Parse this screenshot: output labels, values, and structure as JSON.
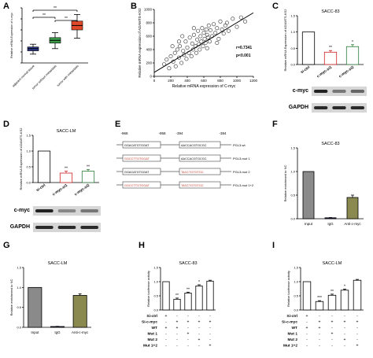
{
  "panel_labels": [
    "A",
    "B",
    "C",
    "D",
    "E",
    "F",
    "G",
    "H",
    "I"
  ],
  "chart_data": [
    {
      "id": "A",
      "type": "box",
      "ylabel": "Relative mRNA Expression of c-myc",
      "ylim": [
        0,
        10
      ],
      "categories": [
        "adjacent normal tissue",
        "tumor without metastasis",
        "tumor with metastasis"
      ],
      "boxes": [
        {
          "min": 1.6,
          "q1": 2.2,
          "median": 2.6,
          "q3": 2.9,
          "max": 3.4,
          "color": "#2e3a8c"
        },
        {
          "min": 2.6,
          "q1": 3.6,
          "median": 4.1,
          "q3": 4.6,
          "max": 5.5,
          "color": "#3a9a4a"
        },
        {
          "min": 4.5,
          "q1": 6.0,
          "median": 6.8,
          "q3": 7.6,
          "max": 8.8,
          "color": "#e04a2a"
        }
      ],
      "significance": [
        {
          "from": 0,
          "to": 2,
          "label": "**"
        },
        {
          "from": 0,
          "to": 1,
          "label": "**"
        },
        {
          "from": 1,
          "to": 2,
          "label": "**"
        }
      ]
    },
    {
      "id": "B",
      "type": "scatter",
      "xlabel": "Relative mRNA expression of C-myc",
      "ylabel": "Relative mRNA expression of ADAMTS-KS2",
      "xlim": [
        0,
        1200
      ],
      "ylim": [
        0,
        1000
      ],
      "xticks": [
        0,
        200,
        400,
        600,
        800,
        1000,
        1200
      ],
      "yticks": [
        0,
        200,
        400,
        600,
        800,
        1000
      ],
      "annotation": [
        "r=0.7341",
        "p<0.001"
      ],
      "fit": {
        "x": [
          0,
          1200
        ],
        "y": [
          60,
          950
        ]
      },
      "points": [
        [
          120,
          180
        ],
        [
          150,
          250
        ],
        [
          180,
          120
        ],
        [
          200,
          300
        ],
        [
          230,
          220
        ],
        [
          250,
          350
        ],
        [
          260,
          150
        ],
        [
          280,
          400
        ],
        [
          300,
          280
        ],
        [
          310,
          450
        ],
        [
          330,
          200
        ],
        [
          350,
          380
        ],
        [
          360,
          320
        ],
        [
          380,
          520
        ],
        [
          390,
          260
        ],
        [
          400,
          430
        ],
        [
          420,
          350
        ],
        [
          430,
          580
        ],
        [
          450,
          300
        ],
        [
          460,
          490
        ],
        [
          470,
          400
        ],
        [
          480,
          620
        ],
        [
          500,
          450
        ],
        [
          510,
          350
        ],
        [
          520,
          550
        ],
        [
          530,
          680
        ],
        [
          540,
          480
        ],
        [
          550,
          400
        ],
        [
          560,
          600
        ],
        [
          570,
          520
        ],
        [
          580,
          720
        ],
        [
          590,
          450
        ],
        [
          600,
          650
        ],
        [
          610,
          560
        ],
        [
          620,
          500
        ],
        [
          630,
          700
        ],
        [
          640,
          620
        ],
        [
          650,
          580
        ],
        [
          660,
          760
        ],
        [
          670,
          520
        ],
        [
          680,
          690
        ],
        [
          700,
          600
        ],
        [
          720,
          780
        ],
        [
          740,
          650
        ],
        [
          760,
          720
        ],
        [
          780,
          560
        ],
        [
          800,
          820
        ],
        [
          820,
          700
        ],
        [
          840,
          640
        ],
        [
          860,
          760
        ],
        [
          880,
          800
        ],
        [
          900,
          680
        ],
        [
          950,
          860
        ],
        [
          1000,
          740
        ],
        [
          1050,
          880
        ],
        [
          1100,
          820
        ],
        [
          220,
          450
        ],
        [
          340,
          600
        ],
        [
          480,
          720
        ],
        [
          300,
          520
        ],
        [
          640,
          420
        ],
        [
          760,
          500
        ]
      ]
    },
    {
      "id": "C",
      "type": "bar",
      "title": "SACC-83",
      "ylabel": "Relative mRNA Expression of ADAMTS-KS2",
      "ylim": [
        0,
        1.5
      ],
      "yticks": [
        0,
        0.5,
        1.0,
        1.5
      ],
      "ytick_labels": [
        "0.0",
        "0.5",
        "1.0",
        "1.5"
      ],
      "categories": [
        "si-ctrl",
        "c-myc-si1",
        "c-myc-si2"
      ],
      "values": [
        1.0,
        0.38,
        0.55
      ],
      "errors": [
        0,
        0.05,
        0.06
      ],
      "significance": [
        "",
        "**",
        "*"
      ],
      "colors": [
        "#ffffff",
        "#ffffff",
        "#ffffff"
      ],
      "edge_colors": [
        "#000000",
        "#cc2222",
        "#2a7a3a"
      ],
      "blot_labels": [
        "c-myc",
        "GAPDH"
      ]
    },
    {
      "id": "D",
      "type": "bar",
      "title": "SACC-LM",
      "ylabel": "Relative mRNA Expression of ADAMTS-KS2",
      "ylim": [
        0,
        1.5
      ],
      "yticks": [
        0,
        0.5,
        1.0,
        1.5
      ],
      "ytick_labels": [
        "0.0",
        "0.5",
        "1.0",
        "1.5"
      ],
      "categories": [
        "si-ctrl",
        "c-myc-si1",
        "c-myc-si2"
      ],
      "values": [
        1.0,
        0.3,
        0.36
      ],
      "errors": [
        0,
        0.06,
        0.05
      ],
      "significance": [
        "",
        "**",
        "**"
      ],
      "colors": [
        "#ffffff",
        "#ffffff",
        "#ffffff"
      ],
      "edge_colors": [
        "#000000",
        "#cc2222",
        "#2a7a3a"
      ],
      "blot_labels": [
        "c-myc",
        "GAPDH"
      ]
    },
    {
      "id": "E",
      "type": "diagram",
      "positions": [
        "-968",
        "-958",
        "-394",
        "-384"
      ],
      "constructs": [
        {
          "seq1": "GGACATGTGGAT",
          "seq2": "AACCACGTGCGC",
          "name": "PGL3-wt"
        },
        {
          "seq1": "GGCCTTGTGGAT",
          "seq2": "AACCACGTGCGC",
          "name": "PGL3-mut 1"
        },
        {
          "seq1": "GGACATGTGGAT",
          "seq2": "TACCTGTGTGC",
          "name": "PGL3-mut 2"
        },
        {
          "seq1": "GGCCTTGTGGAT",
          "seq2": "TACCTGTGTGC",
          "name": "PGL3-mut 1+2"
        }
      ]
    },
    {
      "id": "F",
      "type": "bar",
      "title": "SACC-83",
      "ylabel": "Relative enrichment to NC",
      "ylim": [
        0,
        1.5
      ],
      "yticks": [
        0,
        0.5,
        1.0,
        1.5
      ],
      "ytick_labels": [
        "0.0",
        "0.5",
        "1.0",
        "1.5"
      ],
      "categories": [
        "Input",
        "IgG",
        "Anti-c-myc"
      ],
      "values": [
        1.0,
        0.02,
        0.45
      ],
      "errors": [
        0,
        0.005,
        0.05
      ],
      "colors": [
        "#8a8a8a",
        "#2a2a6a",
        "#8a8a50"
      ]
    },
    {
      "id": "G",
      "type": "bar",
      "title": "SACC-LM",
      "ylabel": "Relative enrichment to NC",
      "ylim": [
        0,
        1.5
      ],
      "yticks": [
        0,
        0.5,
        1.0,
        1.5
      ],
      "ytick_labels": [
        "0.0",
        "0.5",
        "1.0",
        "1.5"
      ],
      "categories": [
        "Input",
        "IgG",
        "Anti-c-myc"
      ],
      "values": [
        1.0,
        0.02,
        0.8
      ],
      "errors": [
        0,
        0.005,
        0.04
      ],
      "colors": [
        "#8a8a8a",
        "#2a2a6a",
        "#8a8a50"
      ]
    },
    {
      "id": "H",
      "type": "bar",
      "title": "SACC-83",
      "ylabel": "Relative luciferase activity",
      "ylim": [
        0,
        1.5
      ],
      "yticks": [
        0,
        0.5,
        1.0,
        1.5
      ],
      "ytick_labels": [
        "0.0",
        "0.5",
        "1.0",
        "1.5"
      ],
      "values": [
        1.0,
        0.38,
        0.6,
        0.85,
        1.02
      ],
      "errors": [
        0,
        0.04,
        0.03,
        0.04,
        0.03
      ],
      "significance": [
        "",
        "**",
        "**",
        "*",
        ""
      ],
      "table_rows": [
        {
          "label": "Si-ctrl",
          "cells": [
            "+",
            "-",
            "-",
            "-",
            "-"
          ]
        },
        {
          "label": "Si-c-myc",
          "cells": [
            "-",
            "+",
            "+",
            "+",
            "+"
          ]
        },
        {
          "label": "WT",
          "cells": [
            "+",
            "+",
            "-",
            "-",
            "-"
          ]
        },
        {
          "label": "Mut 1",
          "cells": [
            "-",
            "-",
            "+",
            "-",
            "-"
          ]
        },
        {
          "label": "Mut 2",
          "cells": [
            "-",
            "-",
            "-",
            "+",
            "-"
          ]
        },
        {
          "label": "Mut 1+2",
          "cells": [
            "-",
            "-",
            "-",
            "-",
            "+"
          ]
        }
      ]
    },
    {
      "id": "I",
      "type": "bar",
      "title": "SACC-LM",
      "ylabel": "Relative luciferase activity",
      "ylim": [
        0,
        1.5
      ],
      "yticks": [
        0,
        0.5,
        1.0,
        1.5
      ],
      "ytick_labels": [
        "0.0",
        "0.5",
        "1.0",
        "1.5"
      ],
      "values": [
        1.0,
        0.3,
        0.52,
        0.7,
        1.05
      ],
      "errors": [
        0,
        0.03,
        0.04,
        0.04,
        0.03
      ],
      "significance": [
        "",
        "***",
        "**",
        "*",
        ""
      ],
      "table_rows": [
        {
          "label": "Si-ctrl",
          "cells": [
            "+",
            "-",
            "-",
            "-",
            "-"
          ]
        },
        {
          "label": "Si-c-myc",
          "cells": [
            "-",
            "+",
            "+",
            "+",
            "+"
          ]
        },
        {
          "label": "WT",
          "cells": [
            "+",
            "+",
            "-",
            "-",
            "-"
          ]
        },
        {
          "label": "Mut 1",
          "cells": [
            "-",
            "-",
            "+",
            "-",
            "-"
          ]
        },
        {
          "label": "Mut 2",
          "cells": [
            "-",
            "-",
            "-",
            "+",
            "-"
          ]
        },
        {
          "label": "Mut 1+2",
          "cells": [
            "-",
            "-",
            "-",
            "-",
            "+"
          ]
        }
      ]
    }
  ]
}
